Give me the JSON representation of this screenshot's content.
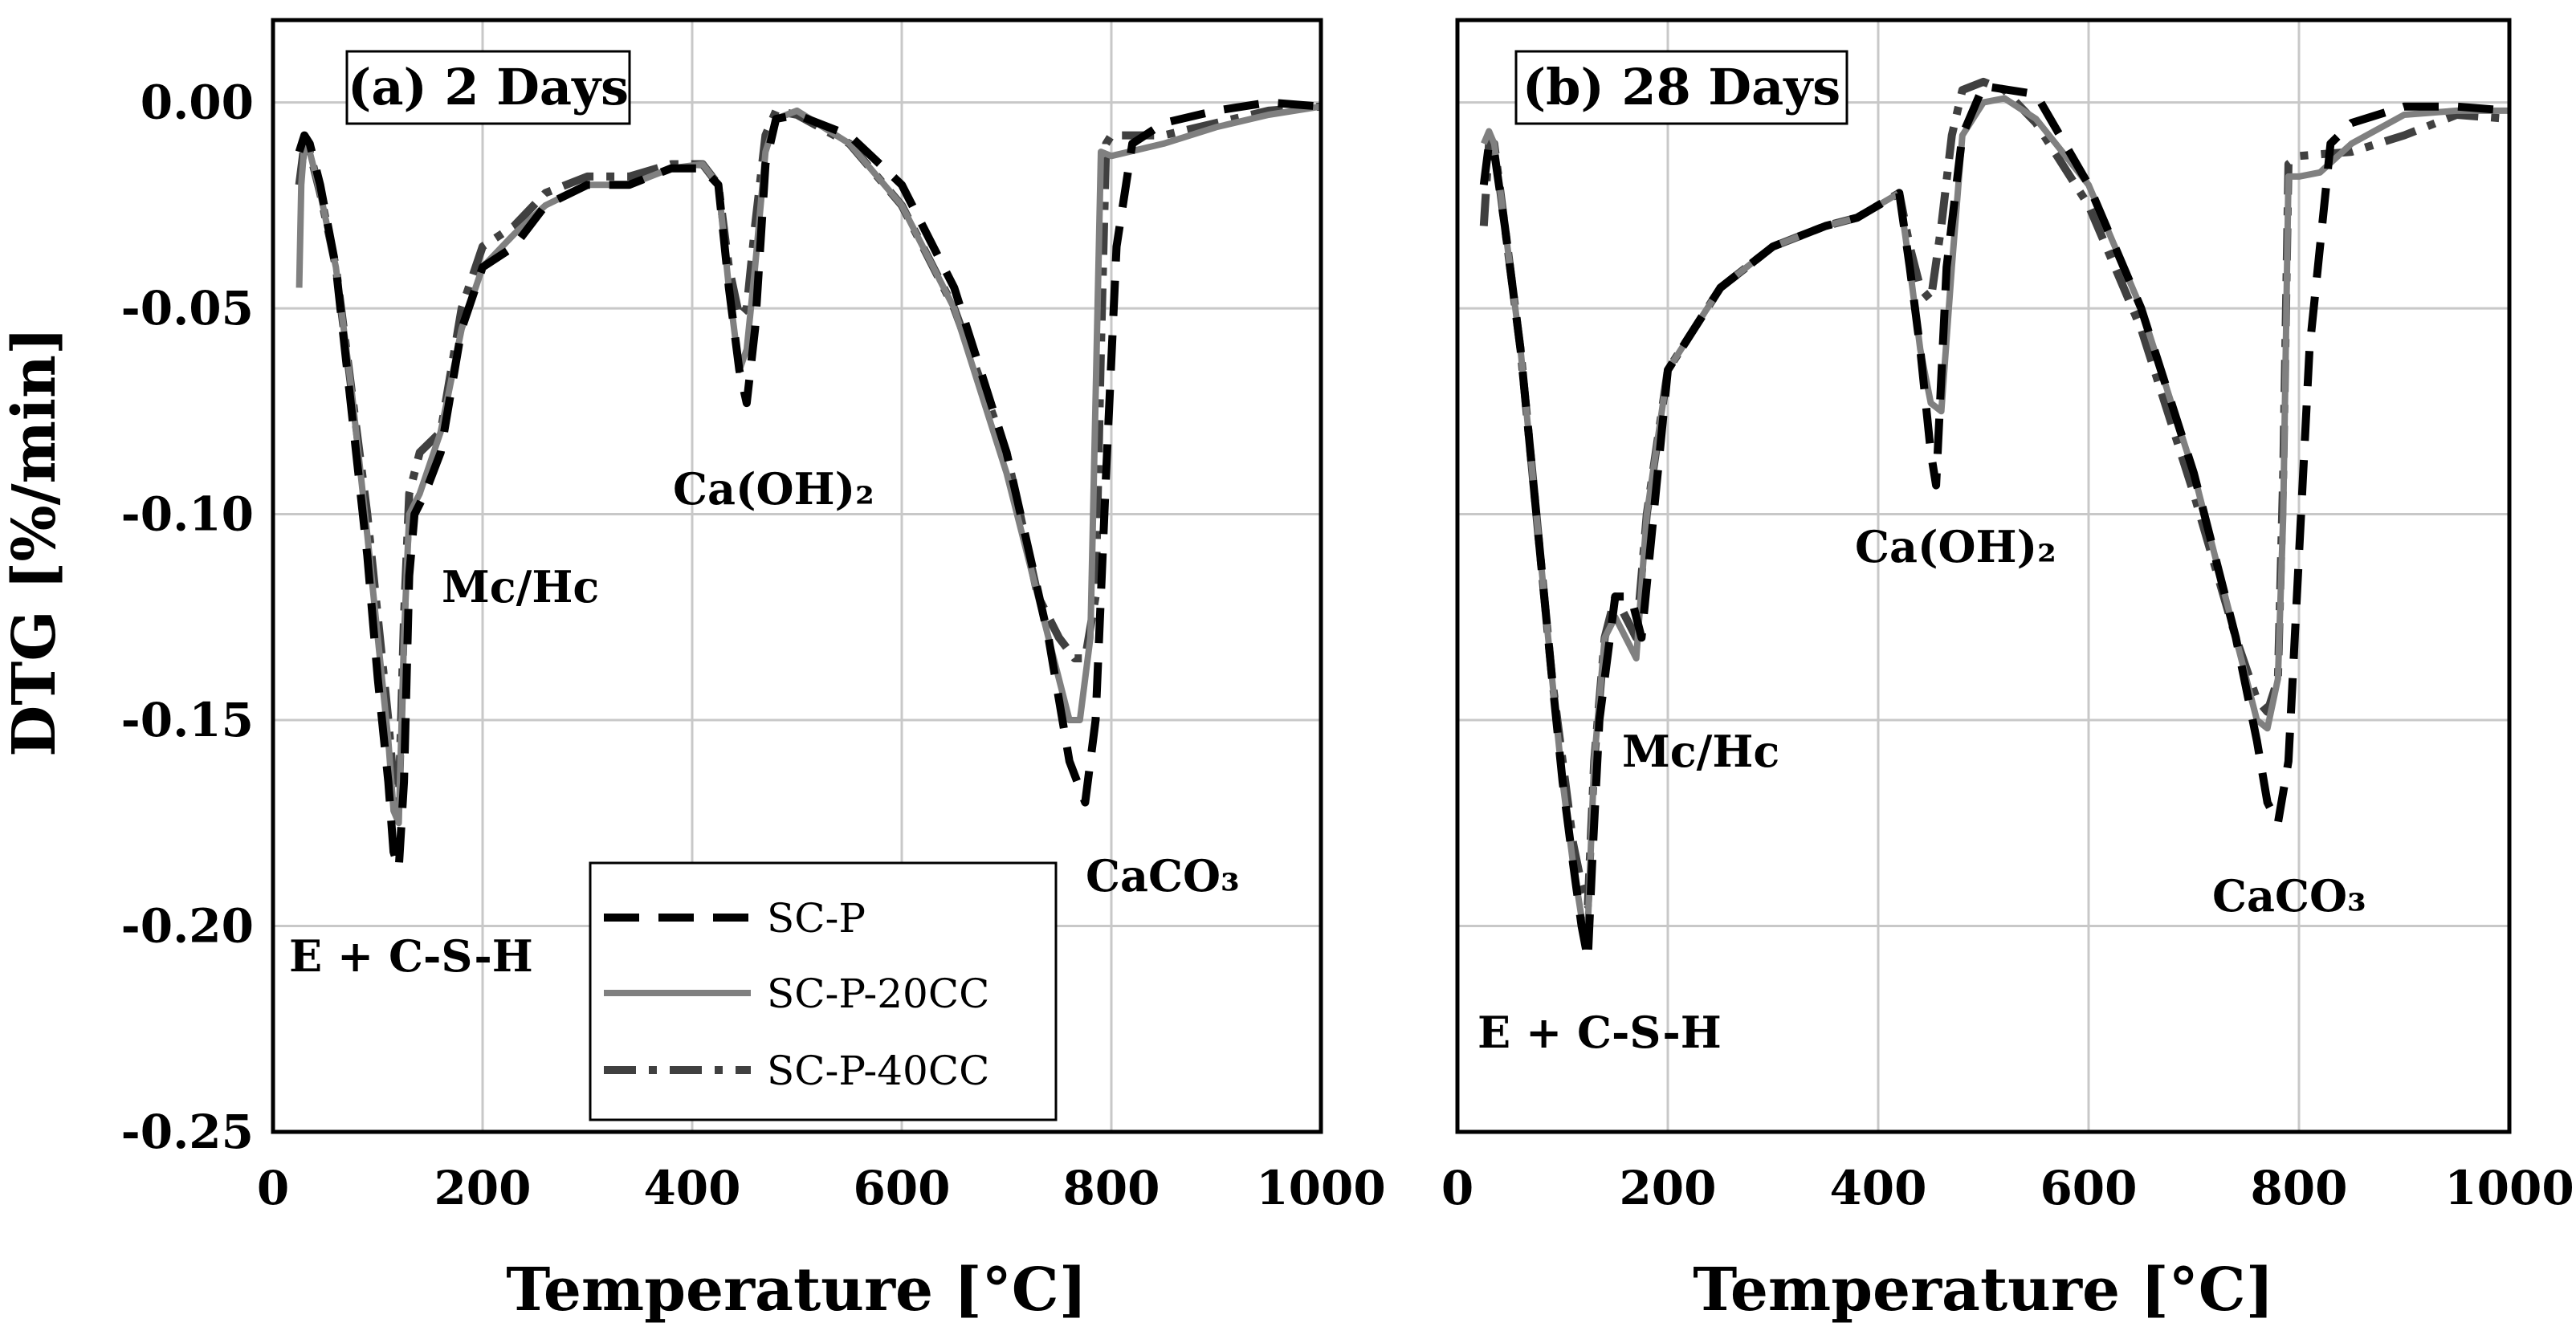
{
  "ylabel": "DTG [%/min]",
  "legend": {
    "entries": [
      "SC-P",
      "SC-P-20CC",
      "SC-P-40CC"
    ]
  },
  "styles": {
    "SC-P": {
      "color": "#000000",
      "dash": "dash"
    },
    "SC-P-20CC": {
      "color": "#808080",
      "dash": "solid"
    },
    "SC-P-40CC": {
      "color": "#404040",
      "dash": "dashdot"
    }
  },
  "chart_data": [
    {
      "type": "line",
      "title": "(a) 2 Days",
      "xlabel": "Temperature [°C]",
      "ylabel": "DTG [%/min]",
      "xlim": [
        0,
        1000
      ],
      "ylim": [
        -0.25,
        0.02
      ],
      "xticks": [
        "0",
        "200",
        "400",
        "600",
        "800",
        "1000"
      ],
      "yticks": [
        "0.00",
        "-0.05",
        "-0.10",
        "-0.15",
        "-0.20",
        "-0.25"
      ],
      "grid": true,
      "annotations": [
        "Mc/Hc",
        "E + C-S-H",
        "Ca(OH)₂",
        "CaCO₃"
      ],
      "series": [
        {
          "name": "SC-P",
          "x": [
            25,
            30,
            35,
            45,
            60,
            75,
            90,
            100,
            110,
            115,
            120,
            125,
            130,
            135,
            145,
            160,
            180,
            200,
            230,
            260,
            300,
            340,
            380,
            410,
            425,
            435,
            445,
            452,
            460,
            470,
            480,
            500,
            550,
            600,
            650,
            700,
            740,
            760,
            775,
            785,
            795,
            805,
            820,
            850,
            900,
            950,
            1000
          ],
          "y": [
            -0.012,
            -0.008,
            -0.01,
            -0.02,
            -0.04,
            -0.075,
            -0.11,
            -0.14,
            -0.165,
            -0.182,
            -0.186,
            -0.165,
            -0.115,
            -0.1,
            -0.095,
            -0.085,
            -0.055,
            -0.04,
            -0.035,
            -0.025,
            -0.02,
            -0.02,
            -0.016,
            -0.016,
            -0.02,
            -0.045,
            -0.065,
            -0.073,
            -0.055,
            -0.015,
            -0.004,
            -0.003,
            -0.008,
            -0.02,
            -0.045,
            -0.085,
            -0.13,
            -0.16,
            -0.17,
            -0.15,
            -0.09,
            -0.035,
            -0.01,
            -0.005,
            -0.002,
            0.0,
            -0.001
          ]
        },
        {
          "name": "SC-P-20CC",
          "x": [
            25,
            27,
            30,
            35,
            45,
            60,
            75,
            90,
            100,
            110,
            115,
            120,
            125,
            130,
            140,
            160,
            180,
            200,
            230,
            260,
            300,
            340,
            380,
            410,
            425,
            435,
            445,
            452,
            460,
            470,
            480,
            500,
            550,
            600,
            650,
            700,
            740,
            760,
            770,
            780,
            786,
            790,
            800,
            850,
            900,
            950,
            1000
          ],
          "y": [
            -0.045,
            -0.02,
            -0.01,
            -0.012,
            -0.022,
            -0.04,
            -0.07,
            -0.105,
            -0.13,
            -0.155,
            -0.172,
            -0.175,
            -0.13,
            -0.1,
            -0.095,
            -0.08,
            -0.055,
            -0.04,
            -0.032,
            -0.025,
            -0.02,
            -0.02,
            -0.016,
            -0.015,
            -0.02,
            -0.045,
            -0.065,
            -0.06,
            -0.04,
            -0.012,
            -0.004,
            -0.002,
            -0.01,
            -0.025,
            -0.05,
            -0.09,
            -0.13,
            -0.15,
            -0.15,
            -0.13,
            -0.06,
            -0.012,
            -0.013,
            -0.01,
            -0.006,
            -0.003,
            -0.001
          ]
        },
        {
          "name": "SC-P-40CC",
          "x": [
            25,
            30,
            35,
            45,
            60,
            75,
            90,
            100,
            110,
            115,
            120,
            125,
            130,
            140,
            160,
            180,
            200,
            230,
            260,
            300,
            340,
            380,
            410,
            425,
            435,
            445,
            452,
            460,
            470,
            480,
            500,
            550,
            600,
            650,
            700,
            730,
            750,
            765,
            775,
            785,
            790,
            795,
            800,
            850,
            900,
            950,
            1000
          ],
          "y": [
            -0.02,
            -0.01,
            -0.012,
            -0.022,
            -0.04,
            -0.07,
            -0.1,
            -0.125,
            -0.15,
            -0.165,
            -0.17,
            -0.125,
            -0.095,
            -0.085,
            -0.08,
            -0.05,
            -0.035,
            -0.03,
            -0.022,
            -0.018,
            -0.018,
            -0.015,
            -0.015,
            -0.02,
            -0.04,
            -0.052,
            -0.05,
            -0.03,
            -0.008,
            -0.002,
            -0.003,
            -0.01,
            -0.025,
            -0.05,
            -0.085,
            -0.12,
            -0.13,
            -0.135,
            -0.135,
            -0.12,
            -0.06,
            -0.01,
            -0.008,
            -0.008,
            -0.005,
            -0.002,
            -0.001
          ]
        }
      ]
    },
    {
      "type": "line",
      "title": "(b) 28 Days",
      "xlabel": "Temperature [°C]",
      "ylabel": "DTG [%/min]",
      "xlim": [
        0,
        1000
      ],
      "ylim": [
        -0.25,
        0.02
      ],
      "xticks": [
        "0",
        "200",
        "400",
        "600",
        "800",
        "1000"
      ],
      "yticks": [],
      "grid": true,
      "annotations": [
        "Mc/Hc",
        "E + C-S-H",
        "Ca(OH)₂",
        "CaCO₃"
      ],
      "series": [
        {
          "name": "SC-P",
          "x": [
            25,
            30,
            35,
            45,
            60,
            75,
            90,
            100,
            110,
            118,
            124,
            128,
            135,
            150,
            165,
            175,
            200,
            250,
            300,
            350,
            380,
            400,
            420,
            430,
            440,
            450,
            455,
            465,
            480,
            500,
            550,
            600,
            650,
            700,
            740,
            760,
            770,
            780,
            790,
            800,
            810,
            830,
            850,
            900,
            950,
            1000
          ],
          "y": [
            -0.02,
            -0.01,
            -0.012,
            -0.03,
            -0.06,
            -0.1,
            -0.14,
            -0.165,
            -0.185,
            -0.2,
            -0.208,
            -0.185,
            -0.15,
            -0.12,
            -0.12,
            -0.13,
            -0.065,
            -0.045,
            -0.035,
            -0.03,
            -0.028,
            -0.025,
            -0.022,
            -0.04,
            -0.06,
            -0.085,
            -0.093,
            -0.04,
            -0.008,
            0.004,
            0.002,
            -0.02,
            -0.05,
            -0.09,
            -0.13,
            -0.155,
            -0.17,
            -0.175,
            -0.16,
            -0.11,
            -0.06,
            -0.01,
            -0.005,
            -0.001,
            -0.001,
            -0.002
          ]
        },
        {
          "name": "SC-P-20CC",
          "x": [
            25,
            30,
            35,
            45,
            60,
            75,
            90,
            100,
            110,
            118,
            124,
            130,
            140,
            150,
            160,
            170,
            180,
            200,
            250,
            300,
            350,
            380,
            400,
            420,
            430,
            440,
            450,
            460,
            470,
            480,
            500,
            520,
            550,
            600,
            650,
            700,
            740,
            760,
            770,
            780,
            785,
            790,
            800,
            820,
            850,
            900,
            950,
            1000
          ],
          "y": [
            -0.01,
            -0.007,
            -0.01,
            -0.03,
            -0.06,
            -0.1,
            -0.14,
            -0.165,
            -0.185,
            -0.198,
            -0.2,
            -0.16,
            -0.13,
            -0.125,
            -0.13,
            -0.135,
            -0.1,
            -0.065,
            -0.045,
            -0.035,
            -0.03,
            -0.028,
            -0.025,
            -0.022,
            -0.04,
            -0.06,
            -0.073,
            -0.075,
            -0.04,
            -0.008,
            0.0,
            0.001,
            -0.004,
            -0.02,
            -0.05,
            -0.09,
            -0.13,
            -0.15,
            -0.152,
            -0.14,
            -0.1,
            -0.018,
            -0.018,
            -0.017,
            -0.01,
            -0.003,
            -0.002,
            -0.002
          ]
        },
        {
          "name": "SC-P-40CC",
          "x": [
            25,
            30,
            35,
            45,
            60,
            75,
            90,
            100,
            110,
            118,
            124,
            130,
            140,
            150,
            160,
            170,
            180,
            200,
            250,
            300,
            350,
            380,
            400,
            420,
            430,
            440,
            450,
            460,
            470,
            480,
            500,
            520,
            550,
            600,
            650,
            700,
            740,
            760,
            770,
            780,
            785,
            790,
            800,
            850,
            900,
            950,
            1000
          ],
          "y": [
            -0.03,
            -0.01,
            -0.01,
            -0.03,
            -0.06,
            -0.1,
            -0.14,
            -0.16,
            -0.18,
            -0.19,
            -0.195,
            -0.16,
            -0.13,
            -0.12,
            -0.125,
            -0.13,
            -0.1,
            -0.065,
            -0.045,
            -0.035,
            -0.03,
            -0.028,
            -0.025,
            -0.022,
            -0.035,
            -0.045,
            -0.048,
            -0.03,
            -0.008,
            0.003,
            0.005,
            0.003,
            -0.005,
            -0.025,
            -0.055,
            -0.095,
            -0.13,
            -0.145,
            -0.148,
            -0.14,
            -0.09,
            -0.015,
            -0.013,
            -0.012,
            -0.008,
            -0.003,
            -0.004
          ]
        }
      ]
    }
  ]
}
